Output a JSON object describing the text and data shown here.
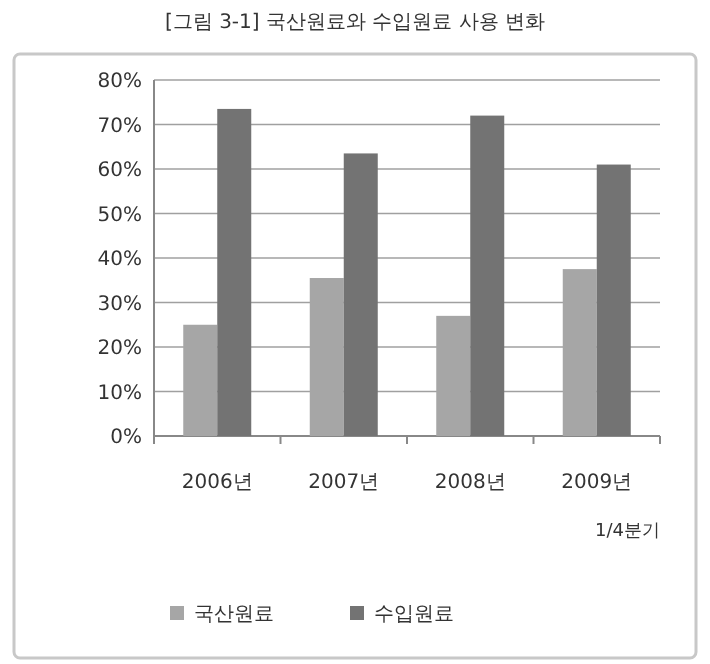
{
  "chart_data": {
    "type": "bar",
    "title": "[그림 3-1] 국산원료와 수입원료 사용 변화",
    "categories": [
      "2006년",
      "2007년",
      "2008년",
      "2009년 1/4분기"
    ],
    "series": [
      {
        "name": "국산원료",
        "color": "#a6a6a6",
        "values": [
          25,
          35.5,
          27,
          37.5
        ]
      },
      {
        "name": "수입원료",
        "color": "#737373",
        "values": [
          73.5,
          63.5,
          72,
          61
        ]
      }
    ],
    "ylim": [
      0,
      80
    ],
    "yticks": [
      {
        "value": 0,
        "label": "0%"
      },
      {
        "value": 10,
        "label": "10%"
      },
      {
        "value": 20,
        "label": "20%"
      },
      {
        "value": 30,
        "label": "30%"
      },
      {
        "value": 40,
        "label": "40%"
      },
      {
        "value": 50,
        "label": "50%"
      },
      {
        "value": 60,
        "label": "60%"
      },
      {
        "value": 70,
        "label": "70%"
      },
      {
        "value": 80,
        "label": "80%"
      }
    ],
    "grid": "y",
    "legend": "bottom"
  }
}
